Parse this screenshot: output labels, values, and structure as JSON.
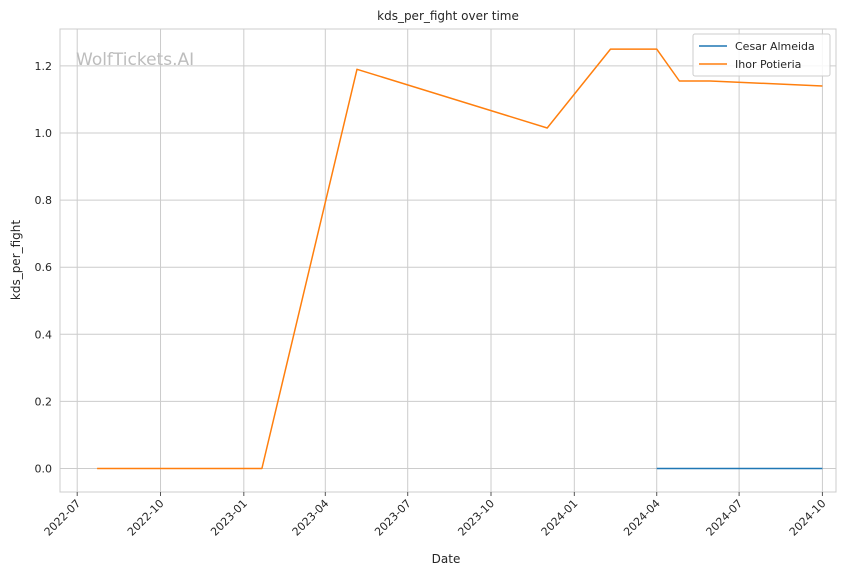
{
  "chart_data": {
    "type": "line",
    "title": "kds_per_fight over time",
    "xlabel": "Date",
    "ylabel": "kds_per_fight",
    "watermark": "WolfTickets.AI",
    "x_axis_type": "date",
    "xlim": [
      "2022-06-12",
      "2024-10-16"
    ],
    "ylim": [
      -0.07,
      1.31
    ],
    "x_ticks": [
      "2022-07",
      "2022-10",
      "2023-01",
      "2023-04",
      "2023-07",
      "2023-10",
      "2024-01",
      "2024-04",
      "2024-07",
      "2024-10"
    ],
    "y_ticks": [
      "0.0",
      "0.2",
      "0.4",
      "0.6",
      "0.8",
      "1.0",
      "1.2"
    ],
    "grid": true,
    "legend_position": "top-right",
    "series": [
      {
        "name": "Cesar Almeida",
        "color": "#1f77b4",
        "x": [
          "2024-04-01",
          "2024-10-01"
        ],
        "y": [
          0.0,
          0.0
        ]
      },
      {
        "name": "Ihor Potieria",
        "color": "#ff7f0e",
        "x": [
          "2022-07-23",
          "2023-01-21",
          "2023-05-06",
          "2023-12-02",
          "2024-02-10",
          "2024-04-01",
          "2024-04-26",
          "2024-05-30",
          "2024-10-01"
        ],
        "y": [
          0.0,
          0.0,
          1.19,
          1.015,
          1.25,
          1.25,
          1.155,
          1.155,
          1.14
        ]
      }
    ]
  }
}
